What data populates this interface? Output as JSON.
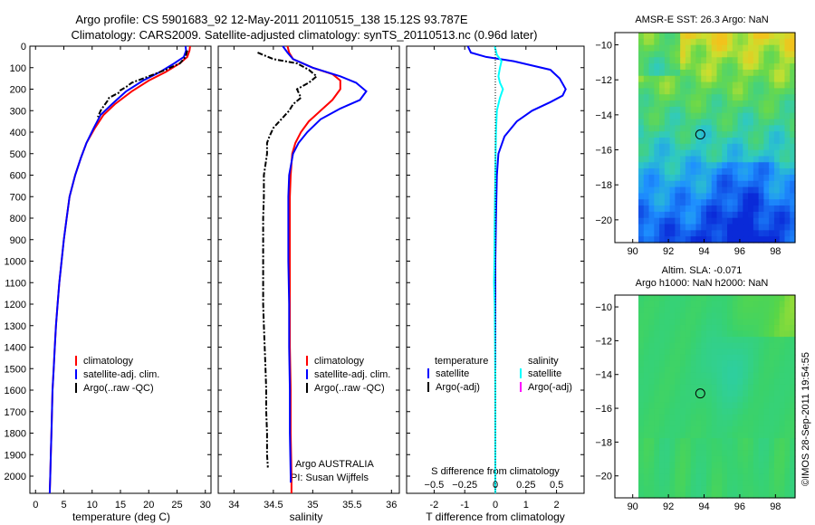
{
  "header": {
    "title_line1": "Argo profile: CS 5901683_92 12-May-2011 20110515_138 15.12S 93.787E",
    "title_line2": "Climatology: CARS2009. Satellite-adjusted climatology: synTS_20110513.nc (0.96d later)"
  },
  "footer": {
    "vertical_stamp": "©IMOS 28-Sep-2011 19:54:55",
    "argo_country": "Argo AUSTRALIA",
    "pi_name": "PI: Susan Wijffels"
  },
  "colors": {
    "climatology": "#ff0000",
    "satellite_adj": "#0000ff",
    "argo": "#000000",
    "salinity_sat": "#00ffff",
    "salinity_argo": "#ff00ff"
  },
  "chart_data": [
    {
      "type": "line",
      "name": "temperature-profile",
      "xlabel": "temperature (deg C)",
      "xlim": [
        -1,
        31
      ],
      "xticks": [
        0,
        5,
        10,
        15,
        20,
        25,
        30
      ],
      "ylim": [
        2080,
        0
      ],
      "yticks": [
        0,
        100,
        200,
        300,
        400,
        500,
        600,
        700,
        800,
        900,
        1000,
        1100,
        1200,
        1300,
        1400,
        1500,
        1600,
        1700,
        1800,
        1900,
        2000
      ],
      "legend": [
        "climatology",
        "satellite-adj. clim.",
        "Argo(..raw -QC)"
      ],
      "series": [
        {
          "name": "climatology",
          "color": "red",
          "points": [
            [
              27.3,
              0
            ],
            [
              27.2,
              20
            ],
            [
              26.8,
              50
            ],
            [
              25.5,
              80
            ],
            [
              23,
              120
            ],
            [
              20,
              160
            ],
            [
              17,
              210
            ],
            [
              14,
              270
            ],
            [
              12,
              320
            ],
            [
              10.5,
              380
            ],
            [
              9,
              450
            ],
            [
              8,
              520
            ],
            [
              7,
              600
            ],
            [
              6,
              700
            ],
            [
              5.5,
              800
            ],
            [
              5,
              900
            ],
            [
              4.6,
              1000
            ],
            [
              4.2,
              1100
            ],
            [
              3.9,
              1200
            ],
            [
              3.6,
              1300
            ],
            [
              3.4,
              1400
            ],
            [
              3.2,
              1500
            ],
            [
              3,
              1600
            ],
            [
              2.9,
              1700
            ],
            [
              2.8,
              1800
            ],
            [
              2.7,
              1900
            ],
            [
              2.6,
              2000
            ],
            [
              2.5,
              2080
            ]
          ]
        },
        {
          "name": "satellite-adj. clim.",
          "color": "blue",
          "points": [
            [
              26.5,
              0
            ],
            [
              26.6,
              20
            ],
            [
              26.2,
              50
            ],
            [
              24.5,
              80
            ],
            [
              22,
              120
            ],
            [
              19,
              160
            ],
            [
              16,
              210
            ],
            [
              13.5,
              270
            ],
            [
              11.5,
              320
            ],
            [
              10.3,
              380
            ],
            [
              9,
              450
            ],
            [
              8,
              520
            ],
            [
              7,
              600
            ],
            [
              6,
              700
            ],
            [
              5.5,
              800
            ],
            [
              5,
              900
            ],
            [
              4.6,
              1000
            ],
            [
              4.2,
              1100
            ],
            [
              3.9,
              1200
            ],
            [
              3.6,
              1300
            ],
            [
              3.4,
              1400
            ],
            [
              3.2,
              1500
            ],
            [
              3,
              1600
            ],
            [
              2.9,
              1700
            ],
            [
              2.8,
              1800
            ],
            [
              2.7,
              1900
            ],
            [
              2.6,
              2000
            ],
            [
              2.5,
              2080
            ]
          ]
        },
        {
          "name": "Argo(..raw -QC)",
          "color": "black",
          "points": [
            [
              26.8,
              20
            ],
            [
              26.5,
              50
            ],
            [
              25.5,
              80
            ],
            [
              23,
              110
            ],
            [
              20,
              140
            ],
            [
              17,
              170
            ],
            [
              16,
              190
            ],
            [
              15,
              205
            ],
            [
              14.8,
              215
            ],
            [
              13,
              240
            ],
            [
              12.7,
              255
            ],
            [
              12,
              280
            ],
            [
              11.5,
              300
            ],
            [
              11,
              330
            ]
          ]
        }
      ]
    },
    {
      "type": "line",
      "name": "salinity-profile",
      "xlabel": "salinity",
      "xlim": [
        33.8,
        36.1
      ],
      "xticks": [
        34,
        34.5,
        35,
        35.5,
        36
      ],
      "ylim": [
        2080,
        0
      ],
      "legend": [
        "climatology",
        "satellite-adj. clim.",
        "Argo(..raw -QC)"
      ],
      "series": [
        {
          "name": "climatology",
          "color": "red",
          "points": [
            [
              34.68,
              0
            ],
            [
              34.7,
              30
            ],
            [
              34.75,
              60
            ],
            [
              35.0,
              100
            ],
            [
              35.25,
              130
            ],
            [
              35.35,
              160
            ],
            [
              35.35,
              200
            ],
            [
              35.25,
              250
            ],
            [
              35.1,
              300
            ],
            [
              34.95,
              350
            ],
            [
              34.85,
              400
            ],
            [
              34.78,
              450
            ],
            [
              34.74,
              500
            ],
            [
              34.72,
              600
            ],
            [
              34.71,
              700
            ],
            [
              34.71,
              800
            ],
            [
              34.71,
              900
            ],
            [
              34.71,
              1000
            ],
            [
              34.71,
              1200
            ],
            [
              34.71,
              1400
            ],
            [
              34.72,
              1600
            ],
            [
              34.72,
              1800
            ],
            [
              34.73,
              2000
            ],
            [
              34.73,
              2080
            ]
          ]
        },
        {
          "name": "satellite-adj. clim.",
          "color": "blue",
          "points": [
            [
              34.62,
              0
            ],
            [
              34.68,
              30
            ],
            [
              34.75,
              60
            ],
            [
              35.0,
              100
            ],
            [
              35.35,
              140
            ],
            [
              35.55,
              170
            ],
            [
              35.68,
              210
            ],
            [
              35.6,
              250
            ],
            [
              35.35,
              290
            ],
            [
              35.1,
              340
            ],
            [
              34.93,
              400
            ],
            [
              34.82,
              450
            ],
            [
              34.75,
              500
            ],
            [
              34.7,
              600
            ],
            [
              34.69,
              700
            ],
            [
              34.69,
              800
            ],
            [
              34.69,
              900
            ],
            [
              34.69,
              1000
            ],
            [
              34.7,
              1200
            ],
            [
              34.7,
              1400
            ],
            [
              34.71,
              1600
            ],
            [
              34.71,
              1800
            ],
            [
              34.72,
              2000
            ],
            [
              34.72,
              2030
            ]
          ]
        },
        {
          "name": "Argo(..raw -QC)",
          "color": "black",
          "points": [
            [
              34.3,
              30
            ],
            [
              34.5,
              60
            ],
            [
              34.8,
              80
            ],
            [
              34.95,
              110
            ],
            [
              35.05,
              140
            ],
            [
              34.95,
              170
            ],
            [
              34.8,
              200
            ],
            [
              34.85,
              240
            ],
            [
              34.75,
              270
            ],
            [
              34.7,
              300
            ],
            [
              34.6,
              340
            ],
            [
              34.5,
              380
            ],
            [
              34.45,
              420
            ],
            [
              34.42,
              450
            ],
            [
              34.42,
              500
            ],
            [
              34.4,
              550
            ],
            [
              34.38,
              600
            ],
            [
              34.38,
              700
            ],
            [
              34.37,
              800
            ],
            [
              34.37,
              900
            ],
            [
              34.37,
              1000
            ],
            [
              34.37,
              1100
            ],
            [
              34.37,
              1200
            ],
            [
              34.38,
              1300
            ],
            [
              34.39,
              1400
            ],
            [
              34.4,
              1500
            ],
            [
              34.41,
              1600
            ],
            [
              34.41,
              1700
            ],
            [
              34.42,
              1800
            ],
            [
              34.42,
              1900
            ],
            [
              34.43,
              1960
            ]
          ]
        }
      ]
    },
    {
      "type": "line",
      "name": "difference-from-climatology",
      "xlabel": "T difference from climatology",
      "xlabel2": "S difference from climatology",
      "xlim_T": [
        -2.9,
        2.9
      ],
      "xticks_T": [
        -2,
        -1,
        0,
        1,
        2
      ],
      "xticks_S": [
        -0.5,
        -0.25,
        0,
        0.25,
        0.5
      ],
      "xticks_S_labels": [
        "−0.5",
        "−0.25",
        "0",
        "0.25",
        "0.5"
      ],
      "xlim_S": [
        -0.725,
        0.725
      ],
      "ylim": [
        2080,
        0
      ],
      "legend_titles": [
        "temperature",
        "salinity"
      ],
      "legend_temperature": [
        "satellite",
        "Argo(-adj)"
      ],
      "legend_salinity": [
        "satellite",
        "Argo(-adj)"
      ],
      "series": [
        {
          "name": "temperature satellite",
          "color": "blue",
          "points": [
            [
              -0.9,
              0
            ],
            [
              -0.8,
              30
            ],
            [
              -0.3,
              50
            ],
            [
              0.6,
              70
            ],
            [
              1.2,
              90
            ],
            [
              1.8,
              110
            ],
            [
              2.1,
              150
            ],
            [
              2.3,
              200
            ],
            [
              2.2,
              230
            ],
            [
              1.8,
              260
            ],
            [
              1.2,
              300
            ],
            [
              0.7,
              350
            ],
            [
              0.3,
              420
            ],
            [
              0.1,
              500
            ],
            [
              0.05,
              600
            ],
            [
              0.02,
              800
            ],
            [
              0,
              1000
            ],
            [
              0,
              1200
            ],
            [
              0,
              1400
            ],
            [
              0,
              1500
            ]
          ]
        },
        {
          "name": "salinity satellite",
          "color": "cyan",
          "points": [
            [
              -0.02,
              0
            ],
            [
              0.05,
              40
            ],
            [
              0.2,
              70
            ],
            [
              0.15,
              100
            ],
            [
              0.1,
              140
            ],
            [
              0.15,
              170
            ],
            [
              0.25,
              200
            ],
            [
              0.15,
              240
            ],
            [
              0.1,
              270
            ],
            [
              0.05,
              300
            ],
            [
              0.02,
              400
            ],
            [
              0.01,
              500
            ],
            [
              0,
              600
            ],
            [
              -0.02,
              800
            ],
            [
              -0.03,
              1000
            ],
            [
              -0.04,
              1100
            ],
            [
              -0.02,
              1200
            ],
            [
              -0.01,
              1400
            ],
            [
              0,
              1600
            ],
            [
              0,
              1800
            ],
            [
              0,
              2000
            ],
            [
              0,
              2080
            ]
          ]
        }
      ]
    },
    {
      "type": "heatmap",
      "name": "sst-map",
      "title": "AMSR-E SST: 26.3  Argo: NaN",
      "xlim": [
        89,
        99.1
      ],
      "ylim": [
        -21.3,
        -9.3
      ],
      "xticks": [
        90,
        92,
        94,
        96,
        98
      ],
      "yticks": [
        -10,
        -12,
        -14,
        -16,
        -18,
        -20
      ],
      "marker": [
        93.787,
        -15.12
      ]
    },
    {
      "type": "heatmap",
      "name": "sla-map",
      "title_line1": "Altim. SLA: -0.071",
      "title_line2": "Argo h1000: NaN h2000: NaN",
      "xlim": [
        89,
        99.1
      ],
      "ylim": [
        -21.3,
        -9.3
      ],
      "xticks": [
        90,
        92,
        94,
        96,
        98
      ],
      "yticks": [
        -10,
        -12,
        -14,
        -16,
        -18,
        -20
      ],
      "marker": [
        93.787,
        -15.12
      ]
    }
  ]
}
